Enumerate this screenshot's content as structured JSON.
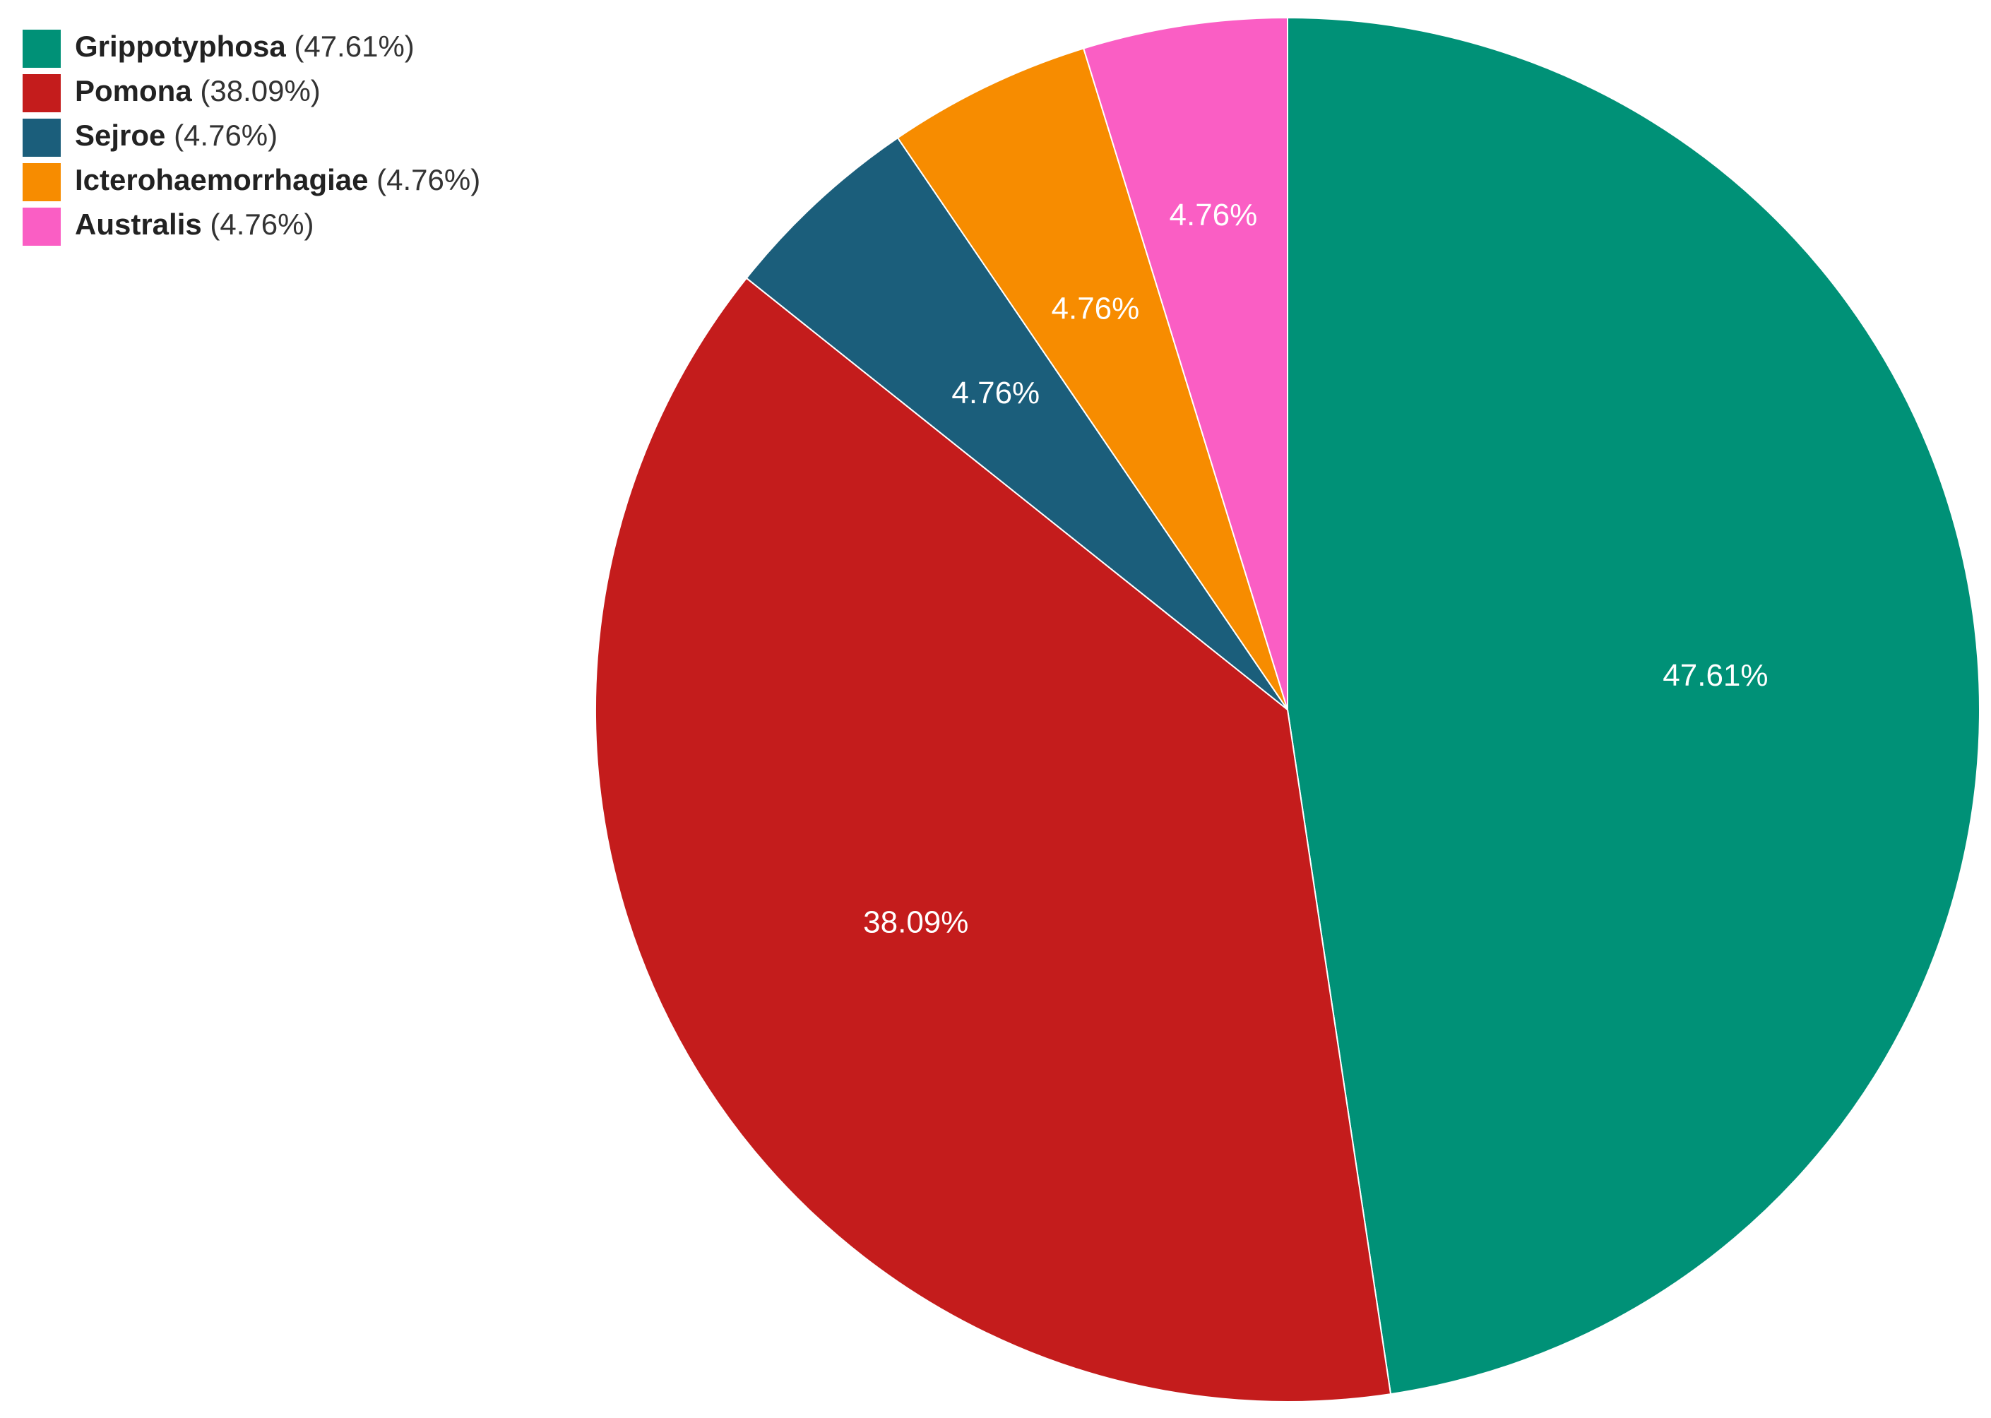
{
  "chart_data": {
    "type": "pie",
    "title": "",
    "start_angle_deg": 0,
    "direction": "clockwise",
    "legend_position": "top-left",
    "slices": [
      {
        "label": "Grippotyphosa",
        "value": 47.61,
        "percent_label": "47.61%",
        "legend_pct": "(47.61%)",
        "color": "#009177"
      },
      {
        "label": "Pomona",
        "value": 38.09,
        "percent_label": "38.09%",
        "legend_pct": "(38.09%)",
        "color": "#C41C1C"
      },
      {
        "label": "Sejroe",
        "value": 4.76,
        "percent_label": "4.76%",
        "legend_pct": "(4.76%)",
        "color": "#1B5E7B"
      },
      {
        "label": "Icterohaemorrhagiae",
        "value": 4.76,
        "percent_label": "4.76%",
        "legend_pct": "(4.76%)",
        "color": "#F78C00"
      },
      {
        "label": "Australis",
        "value": 4.76,
        "percent_label": "4.76%",
        "legend_pct": "(4.76%)",
        "color": "#FA5EC4"
      }
    ]
  }
}
